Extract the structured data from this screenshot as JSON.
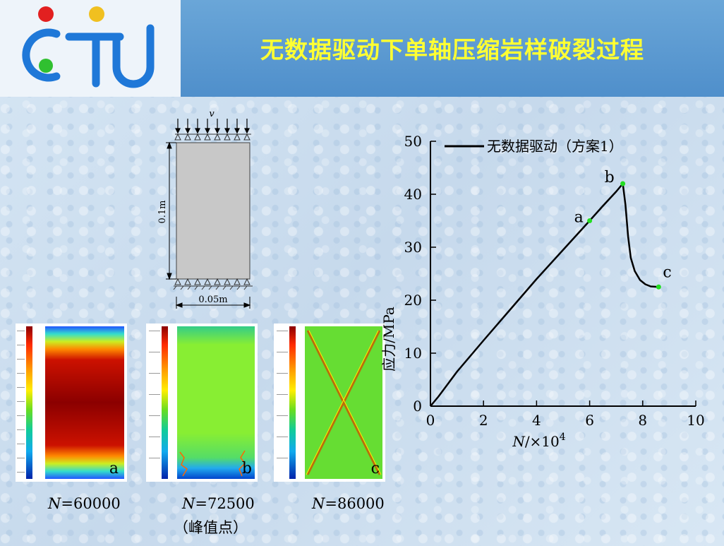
{
  "header": {
    "title": "无数据驱动下单轴压缩岩样破裂过程"
  },
  "logo": {
    "text": "CTU",
    "colors": {
      "red": "#e22020",
      "yellow": "#f0c020",
      "green": "#30c030",
      "blue": "#1f78d8"
    }
  },
  "schematic": {
    "velocity_label": "v",
    "height_label": "0.1m",
    "width_label": "0.05m"
  },
  "panels": [
    {
      "letter": "a",
      "n_symbol": "N",
      "caption": "=60000",
      "note": ""
    },
    {
      "letter": "b",
      "n_symbol": "N",
      "caption": "=72500",
      "note": "（峰值点）"
    },
    {
      "letter": "c",
      "n_symbol": "N",
      "caption": "=86000",
      "note": ""
    }
  ],
  "chart_data": {
    "type": "line",
    "legend": "无数据驱动（方案1）",
    "legend_position": "top-left",
    "ylabel": "应力/MPa",
    "xlabel_symbol": "N",
    "xlabel_rest": "/×10",
    "xlabel_exp": "4",
    "xlim": [
      0,
      10
    ],
    "ylim": [
      0,
      50
    ],
    "xticks": [
      "0",
      "2",
      "4",
      "6",
      "8",
      "10"
    ],
    "yticks": [
      "0",
      "10",
      "20",
      "30",
      "40",
      "50"
    ],
    "series": [
      {
        "x": [
          0,
          0.3,
          1,
          2,
          3,
          4,
          5,
          6,
          6.5,
          7,
          7.25,
          7.35,
          7.45,
          7.55,
          7.7,
          7.9,
          8.1,
          8.3,
          8.6
        ],
        "y": [
          0,
          1.8,
          6.5,
          12.4,
          18.2,
          24,
          29.5,
          35,
          37.8,
          40.5,
          42,
          38,
          32,
          28,
          25.5,
          23.8,
          23,
          22.6,
          22.5
        ]
      }
    ],
    "annotations": [
      {
        "label": "a",
        "x": 6.0,
        "y": 35.0
      },
      {
        "label": "b",
        "x": 7.25,
        "y": 42.0
      },
      {
        "label": "c",
        "x": 8.6,
        "y": 22.5
      }
    ],
    "marker_color": "#22dd22"
  }
}
